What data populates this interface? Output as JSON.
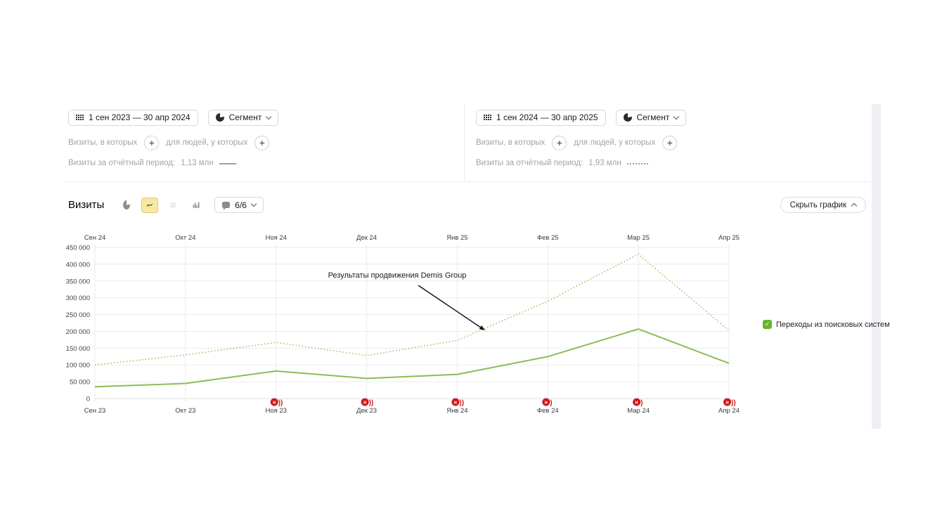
{
  "comparison": {
    "panels": [
      {
        "date_range": "1 сен 2023 — 30 апр 2024",
        "segment_label": "Сегмент",
        "visits_filter_label": "Визиты, в которых",
        "people_filter_label": "для людей, у которых",
        "plus_label": "+",
        "summary_label": "Визиты за отчётный период:",
        "summary_value": "1,13 млн",
        "line_style": "solid"
      },
      {
        "date_range": "1 сен 2024 — 30 апр 2025",
        "segment_label": "Сегмент",
        "visits_filter_label": "Визиты, в которых",
        "people_filter_label": "для людей, у которых",
        "plus_label": "+",
        "summary_label": "Визиты за отчётный период:",
        "summary_value": "1,93 млн",
        "line_style": "dotted"
      }
    ]
  },
  "chart_header": {
    "title": "Визиты",
    "icons": [
      "pie-chart-icon",
      "line-chart-icon",
      "stacked-lines-icon",
      "columns-chart-icon"
    ],
    "annotations_count": "6/6",
    "hide_chart_label": "Скрыть график"
  },
  "legend": {
    "label": "Переходы из поисковых систем",
    "color": "#67b42f",
    "checked": true,
    "checkmark": "✓"
  },
  "chart_data": {
    "type": "line",
    "title": "Визиты",
    "metric": "Переходы из поисковых систем",
    "x_top": [
      "Сен 24",
      "Окт 24",
      "Ноя 24",
      "Дек 24",
      "Янв 25",
      "Фев 25",
      "Мар 25",
      "Апр 25"
    ],
    "x_bottom": [
      "Сен 23",
      "Окт 23",
      "Ноя 23",
      "Дек 23",
      "Янв 24",
      "Фев 24",
      "Мар 24",
      "Апр 24"
    ],
    "ylim": [
      0,
      450000
    ],
    "ytick_step": 50000,
    "grid": true,
    "legend_position": "right",
    "series": [
      {
        "name": "1 сен 2023 — 30 апр 2024",
        "style": "solid",
        "color": "#8abc57",
        "values": [
          35000,
          45000,
          82000,
          60000,
          72000,
          125000,
          207000,
          105000
        ]
      },
      {
        "name": "1 сен 2024 — 30 апр 2025",
        "style": "dotted",
        "color": "#9fba5f",
        "values": [
          100000,
          130000,
          167000,
          128000,
          173000,
          290000,
          430000,
          202000
        ]
      }
    ],
    "annotation": {
      "text": "Результаты продвижения Demis Group"
    },
    "news_markers": [
      {
        "x_index": 2,
        "label": "н",
        "parens": 2
      },
      {
        "x_index": 3,
        "label": "н",
        "parens": 2
      },
      {
        "x_index": 4,
        "label": "н",
        "parens": 2
      },
      {
        "x_index": 5,
        "label": "н",
        "parens": 1
      },
      {
        "x_index": 6,
        "label": "н",
        "parens": 1
      },
      {
        "x_index": 7,
        "label": "н",
        "parens": 2
      }
    ]
  }
}
